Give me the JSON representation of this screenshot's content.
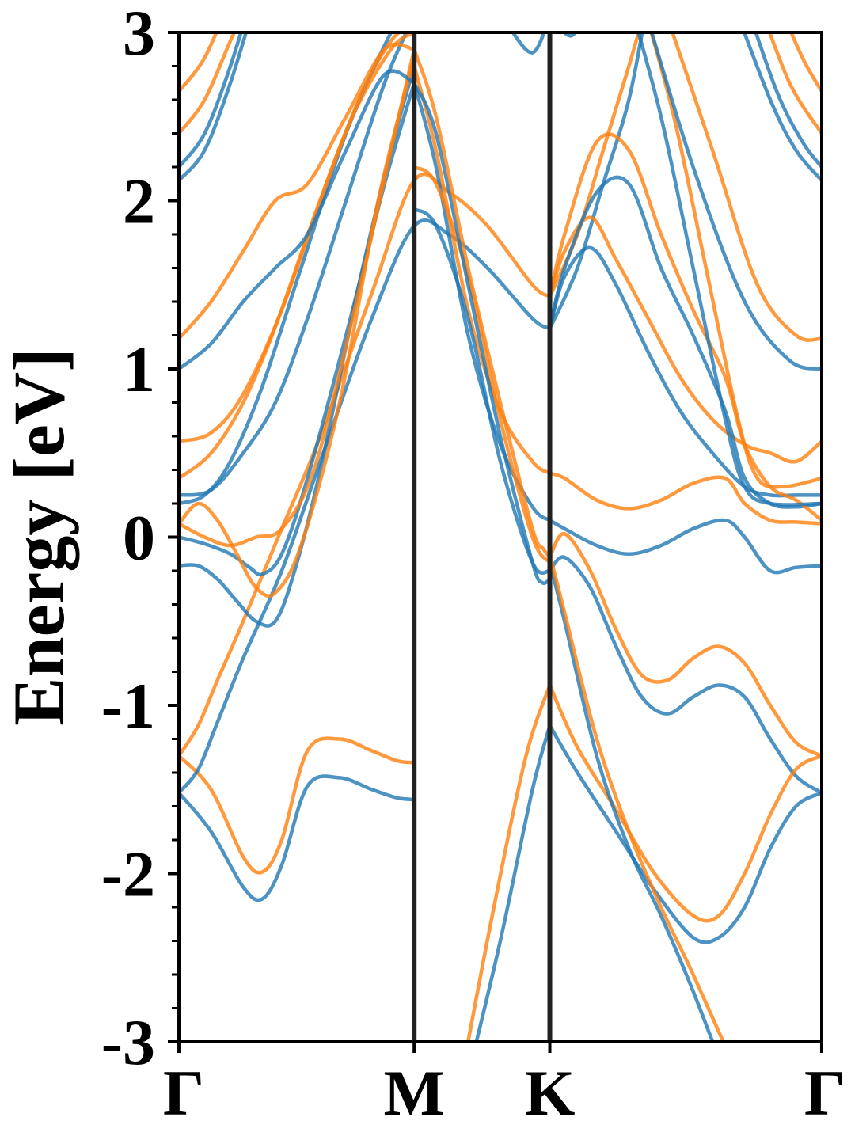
{
  "chart_data": {
    "type": "line",
    "title": "",
    "xlabel": "",
    "ylabel": "Energy [eV]",
    "ylim": [
      -3,
      3
    ],
    "xlim": [
      0,
      1
    ],
    "grid": false,
    "legend": "none",
    "yticks": [
      {
        "value": 3,
        "label": "3"
      },
      {
        "value": 2,
        "label": "2"
      },
      {
        "value": 1,
        "label": "1"
      },
      {
        "value": 0,
        "label": "0"
      },
      {
        "value": -1,
        "label": "-1"
      },
      {
        "value": -2,
        "label": "-2"
      },
      {
        "value": -3,
        "label": "-3"
      }
    ],
    "yminor_step": 0.2,
    "high_symmetry_points": [
      {
        "label": "Γ",
        "x": 0.0
      },
      {
        "label": "M",
        "x": 0.366
      },
      {
        "label": "K",
        "x": 0.577
      },
      {
        "label": "Γ",
        "x": 1.0
      }
    ],
    "series_colors": {
      "blue": "#1f77b4",
      "orange": "#ff7f0e"
    },
    "vline_color": "#222222",
    "series": [
      {
        "color": "blue",
        "x": [
          0,
          0.05,
          0.1,
          0.13,
          0.16,
          0.2,
          0.25,
          0.3,
          0.34,
          0.366
        ],
        "y": [
          -1.52,
          -1.75,
          -2.08,
          -2.15,
          -1.95,
          -1.48,
          -1.43,
          -1.5,
          -1.55,
          -1.56
        ]
      },
      {
        "color": "orange",
        "x": [
          0,
          0.05,
          0.1,
          0.13,
          0.16,
          0.2,
          0.25,
          0.3,
          0.34,
          0.366
        ],
        "y": [
          -1.3,
          -1.5,
          -1.9,
          -1.99,
          -1.8,
          -1.27,
          -1.2,
          -1.27,
          -1.33,
          -1.34
        ]
      },
      {
        "color": "blue",
        "x": [
          0,
          0.03,
          0.06,
          0.1,
          0.16,
          0.22,
          0.3,
          0.366,
          0.42,
          0.48,
          0.55,
          0.577
        ],
        "y": [
          -1.52,
          -1.38,
          -1.1,
          -0.72,
          -0.2,
          0.45,
          1.3,
          1.85,
          1.8,
          1.6,
          1.3,
          1.24
        ]
      },
      {
        "color": "orange",
        "x": [
          0,
          0.03,
          0.06,
          0.1,
          0.16,
          0.22,
          0.3,
          0.366,
          0.42,
          0.48,
          0.55,
          0.577
        ],
        "y": [
          -1.3,
          -1.12,
          -0.85,
          -0.5,
          0.05,
          0.6,
          1.45,
          2.12,
          2.05,
          1.85,
          1.5,
          1.43
        ]
      },
      {
        "color": "blue",
        "x": [
          0,
          0.03,
          0.06,
          0.09,
          0.12,
          0.15,
          0.18,
          0.22,
          0.28,
          0.33,
          0.366
        ],
        "y": [
          -0.17,
          -0.17,
          -0.25,
          -0.38,
          -0.5,
          -0.5,
          -0.2,
          0.4,
          1.5,
          2.3,
          2.8
        ]
      },
      {
        "color": "blue",
        "x": [
          0,
          0.04,
          0.08,
          0.11,
          0.13,
          0.16,
          0.2,
          0.26,
          0.32,
          0.366
        ],
        "y": [
          0.0,
          -0.04,
          -0.1,
          -0.18,
          -0.22,
          -0.1,
          0.35,
          1.2,
          2.1,
          2.7
        ]
      },
      {
        "color": "orange",
        "x": [
          0,
          0.03,
          0.06,
          0.09,
          0.12,
          0.15,
          0.19,
          0.25,
          0.31,
          0.366
        ],
        "y": [
          0.08,
          0.2,
          0.1,
          -0.1,
          -0.3,
          -0.33,
          -0.05,
          0.8,
          2.0,
          2.85
        ]
      },
      {
        "color": "orange",
        "x": [
          0,
          0.04,
          0.08,
          0.12,
          0.16,
          0.21,
          0.27,
          0.33,
          0.366
        ],
        "y": [
          0.08,
          0.0,
          -0.05,
          0.0,
          0.05,
          0.4,
          1.3,
          2.3,
          2.9
        ]
      },
      {
        "color": "blue",
        "x": [
          0,
          0.05,
          0.1,
          0.15,
          0.2,
          0.26,
          0.32,
          0.366
        ],
        "y": [
          0.25,
          0.28,
          0.5,
          0.8,
          1.3,
          2.0,
          2.7,
          3.1
        ]
      },
      {
        "color": "blue",
        "x": [
          0,
          0.04,
          0.08,
          0.13,
          0.19,
          0.26,
          0.33,
          0.366
        ],
        "y": [
          0.2,
          0.25,
          0.45,
          0.9,
          1.6,
          2.4,
          3.0,
          3.2
        ]
      },
      {
        "color": "orange",
        "x": [
          0,
          0.05,
          0.1,
          0.15,
          0.21,
          0.27,
          0.33,
          0.366
        ],
        "y": [
          0.35,
          0.5,
          0.8,
          1.25,
          1.9,
          2.5,
          2.9,
          3.0
        ]
      },
      {
        "color": "orange",
        "x": [
          0,
          0.05,
          0.1,
          0.16,
          0.22,
          0.28,
          0.33,
          0.366
        ],
        "y": [
          0.57,
          0.62,
          0.85,
          1.35,
          2.0,
          2.6,
          2.95,
          3.05
        ]
      },
      {
        "color": "blue",
        "x": [
          0,
          0.05,
          0.1,
          0.15,
          0.2,
          0.26,
          0.32,
          0.366
        ],
        "y": [
          1.0,
          1.15,
          1.4,
          1.6,
          1.8,
          2.3,
          2.75,
          2.7
        ]
      },
      {
        "color": "orange",
        "x": [
          0,
          0.05,
          0.1,
          0.15,
          0.2,
          0.26,
          0.32,
          0.366
        ],
        "y": [
          1.18,
          1.4,
          1.7,
          2.0,
          2.1,
          2.5,
          2.9,
          2.9
        ]
      },
      {
        "color": "blue",
        "x": [
          0,
          0.04,
          0.08,
          0.12
        ],
        "y": [
          2.12,
          2.3,
          2.7,
          3.2
        ]
      },
      {
        "color": "blue",
        "x": [
          0,
          0.04,
          0.08,
          0.12
        ],
        "y": [
          2.2,
          2.4,
          2.8,
          3.3
        ]
      },
      {
        "color": "orange",
        "x": [
          0,
          0.04,
          0.08,
          0.12
        ],
        "y": [
          2.4,
          2.6,
          2.95,
          3.3
        ]
      },
      {
        "color": "orange",
        "x": [
          0,
          0.04,
          0.08
        ],
        "y": [
          2.65,
          2.85,
          3.2
        ]
      },
      {
        "color": "blue",
        "x": [
          0.366,
          0.4,
          0.45,
          0.5,
          0.55,
          0.577
        ],
        "y": [
          2.7,
          2.2,
          1.2,
          0.55,
          0.18,
          0.1
        ]
      },
      {
        "color": "orange",
        "x": [
          0.366,
          0.4,
          0.45,
          0.5,
          0.55,
          0.577
        ],
        "y": [
          2.8,
          2.3,
          1.35,
          0.75,
          0.45,
          0.38
        ]
      },
      {
        "color": "blue",
        "x": [
          0.366,
          0.4,
          0.45,
          0.5,
          0.55,
          0.577
        ],
        "y": [
          1.95,
          1.85,
          1.3,
          0.45,
          -0.15,
          -0.2
        ]
      },
      {
        "color": "orange",
        "x": [
          0.366,
          0.4,
          0.45,
          0.5,
          0.55,
          0.577
        ],
        "y": [
          2.2,
          2.1,
          1.55,
          0.7,
          0.0,
          -0.15
        ]
      },
      {
        "color": "blue",
        "x": [
          0.366,
          0.4,
          0.45,
          0.5,
          0.55,
          0.565,
          0.577
        ],
        "y": [
          2.7,
          2.4,
          1.5,
          0.6,
          -0.15,
          -0.27,
          -0.25
        ]
      },
      {
        "color": "orange",
        "x": [
          0.366,
          0.4,
          0.45,
          0.5,
          0.55,
          0.567,
          0.577
        ],
        "y": [
          2.9,
          2.5,
          1.6,
          0.8,
          0.05,
          -0.07,
          -0.12
        ]
      },
      {
        "color": "blue",
        "x": [
          0.577,
          0.6,
          0.65,
          0.7,
          0.75,
          0.8,
          0.85,
          0.88,
          0.92,
          0.96,
          1.0
        ],
        "y": [
          0.1,
          0.05,
          -0.05,
          -0.1,
          -0.05,
          0.05,
          0.1,
          0.0,
          -0.2,
          -0.18,
          -0.17
        ]
      },
      {
        "color": "orange",
        "x": [
          0.577,
          0.6,
          0.65,
          0.7,
          0.75,
          0.8,
          0.85,
          0.88,
          0.92,
          0.96,
          1.0
        ],
        "y": [
          0.38,
          0.35,
          0.22,
          0.17,
          0.22,
          0.32,
          0.35,
          0.2,
          0.1,
          0.09,
          0.08
        ]
      },
      {
        "color": "blue",
        "x": [
          0.577,
          0.6,
          0.64,
          0.68,
          0.72,
          0.76,
          0.8,
          0.84,
          0.88,
          0.92,
          0.96,
          1.0
        ],
        "y": [
          -0.2,
          -0.12,
          -0.3,
          -0.65,
          -0.95,
          -1.05,
          -0.95,
          -0.88,
          -0.95,
          -1.2,
          -1.42,
          -1.52
        ]
      },
      {
        "color": "orange",
        "x": [
          0.577,
          0.6,
          0.64,
          0.68,
          0.72,
          0.76,
          0.8,
          0.84,
          0.88,
          0.92,
          0.96,
          1.0
        ],
        "y": [
          -0.12,
          0.02,
          -0.2,
          -0.55,
          -0.82,
          -0.85,
          -0.72,
          -0.65,
          -0.75,
          -1.0,
          -1.22,
          -1.3
        ]
      },
      {
        "color": "blue",
        "x": [
          0.577,
          0.62,
          0.68,
          0.74,
          0.8,
          0.84,
          0.88,
          0.92,
          0.96,
          1.0
        ],
        "y": [
          -1.12,
          -1.4,
          -1.75,
          -2.1,
          -2.38,
          -2.38,
          -2.2,
          -1.85,
          -1.6,
          -1.52
        ]
      },
      {
        "color": "orange",
        "x": [
          0.577,
          0.62,
          0.68,
          0.74,
          0.8,
          0.84,
          0.88,
          0.92,
          0.96,
          1.0
        ],
        "y": [
          -0.88,
          -1.25,
          -1.62,
          -2.0,
          -2.25,
          -2.25,
          -2.0,
          -1.65,
          -1.38,
          -1.3
        ]
      },
      {
        "color": "blue",
        "x": [
          0.577,
          0.6,
          0.65,
          0.7,
          0.75,
          0.8,
          0.85
        ],
        "y": [
          -0.15,
          -0.5,
          -1.3,
          -1.85,
          -2.25,
          -2.7,
          -3.2
        ]
      },
      {
        "color": "orange",
        "x": [
          0.577,
          0.6,
          0.65,
          0.7,
          0.75,
          0.8,
          0.87
        ],
        "y": [
          -0.1,
          -0.45,
          -1.2,
          -1.75,
          -2.2,
          -2.6,
          -3.2
        ]
      },
      {
        "color": "blue",
        "x": [
          0.45,
          0.5,
          0.55,
          0.577
        ],
        "y": [
          -3.2,
          -2.4,
          -1.5,
          -1.12
        ]
      },
      {
        "color": "orange",
        "x": [
          0.44,
          0.49,
          0.54,
          0.577
        ],
        "y": [
          -3.2,
          -2.2,
          -1.3,
          -0.88
        ]
      },
      {
        "color": "blue",
        "x": [
          0.577,
          0.62,
          0.66,
          0.7,
          0.73
        ],
        "y": [
          1.24,
          1.6,
          2.1,
          2.6,
          3.2
        ]
      },
      {
        "color": "orange",
        "x": [
          0.577,
          0.62,
          0.66,
          0.7,
          0.73
        ],
        "y": [
          1.43,
          1.8,
          2.3,
          2.8,
          3.2
        ]
      },
      {
        "color": "blue",
        "x": [
          0.577,
          0.6,
          0.64,
          0.68,
          0.73,
          0.78,
          0.83,
          0.88,
          0.92,
          0.96,
          1.0
        ],
        "y": [
          1.24,
          1.55,
          1.72,
          1.5,
          1.1,
          0.75,
          0.5,
          0.3,
          0.25,
          0.25,
          0.25
        ]
      },
      {
        "color": "orange",
        "x": [
          0.577,
          0.6,
          0.64,
          0.68,
          0.73,
          0.78,
          0.83,
          0.88,
          0.92,
          0.96,
          1.0
        ],
        "y": [
          1.43,
          1.7,
          1.9,
          1.65,
          1.3,
          0.95,
          0.7,
          0.55,
          0.5,
          0.45,
          0.57
        ]
      },
      {
        "color": "blue",
        "x": [
          0.577,
          0.6,
          0.65,
          0.7,
          0.75,
          0.8,
          0.85,
          0.88,
          0.92,
          0.96,
          1.0
        ],
        "y": [
          1.24,
          1.6,
          2.05,
          2.1,
          1.6,
          1.2,
          0.75,
          0.35,
          0.2,
          0.18,
          0.2
        ]
      },
      {
        "color": "orange",
        "x": [
          0.577,
          0.6,
          0.65,
          0.7,
          0.75,
          0.8,
          0.85,
          0.88,
          0.92,
          0.96,
          1.0
        ],
        "y": [
          1.43,
          1.8,
          2.35,
          2.3,
          1.8,
          1.35,
          0.95,
          0.55,
          0.3,
          0.22,
          0.1
        ]
      },
      {
        "color": "blue",
        "x": [
          0.7,
          0.75,
          0.8,
          0.85,
          0.88,
          0.92,
          1.0
        ],
        "y": [
          3.2,
          2.5,
          1.6,
          0.7,
          0.3,
          0.2,
          0.2
        ]
      },
      {
        "color": "orange",
        "x": [
          0.72,
          0.77,
          0.82,
          0.87,
          0.9,
          0.94,
          1.0
        ],
        "y": [
          3.2,
          2.5,
          1.6,
          0.7,
          0.35,
          0.3,
          0.35
        ]
      },
      {
        "color": "blue",
        "x": [
          0.72,
          0.8,
          0.88,
          0.95,
          1.0
        ],
        "y": [
          3.2,
          2.2,
          1.4,
          1.05,
          1.0
        ]
      },
      {
        "color": "orange",
        "x": [
          0.75,
          0.83,
          0.9,
          0.96,
          1.0
        ],
        "y": [
          3.2,
          2.3,
          1.5,
          1.2,
          1.18
        ]
      },
      {
        "color": "blue",
        "x": [
          0.86,
          0.92,
          0.96,
          1.0
        ],
        "y": [
          3.2,
          2.6,
          2.3,
          2.12
        ]
      },
      {
        "color": "blue",
        "x": [
          0.88,
          0.93,
          0.97,
          1.0
        ],
        "y": [
          3.2,
          2.65,
          2.35,
          2.2
        ]
      },
      {
        "color": "orange",
        "x": [
          0.9,
          0.95,
          1.0
        ],
        "y": [
          3.2,
          2.7,
          2.4
        ]
      },
      {
        "color": "orange",
        "x": [
          0.93,
          0.97,
          1.0
        ],
        "y": [
          3.2,
          2.85,
          2.65
        ]
      },
      {
        "color": "blue",
        "x": [
          0.48,
          0.51,
          0.55,
          0.577
        ],
        "y": [
          3.2,
          3.05,
          2.88,
          3.1
        ]
      },
      {
        "color": "blue",
        "x": [
          0.58,
          0.61,
          0.64
        ],
        "y": [
          3.1,
          2.98,
          3.15
        ]
      }
    ]
  }
}
